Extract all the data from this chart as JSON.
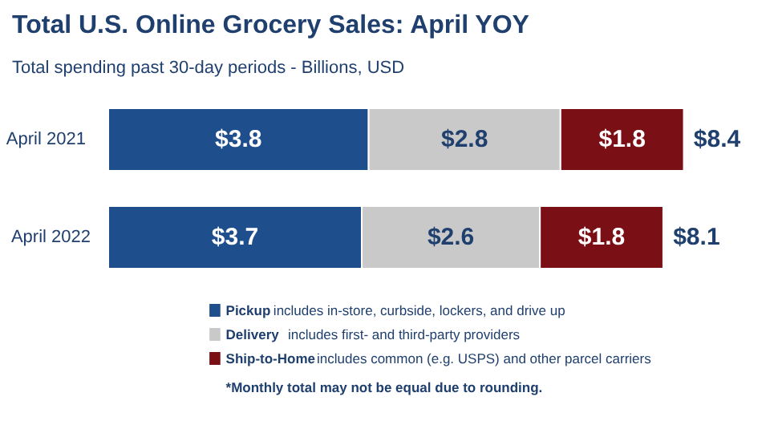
{
  "chart_data": {
    "type": "bar",
    "orientation": "horizontal",
    "stacked": true,
    "title": "Total U.S. Online Grocery Sales: April YOY",
    "subtitle": "Total spending past 30-day periods - Billions, USD",
    "categories": [
      "April  2021",
      "April 2022"
    ],
    "series": [
      {
        "name": "Pickup",
        "color": "#1f4e8c",
        "values": [
          3.8,
          3.7
        ],
        "value_labels": [
          "$3.8",
          "$3.7"
        ]
      },
      {
        "name": "Delivery",
        "color": "#c9c9c9",
        "values": [
          2.8,
          2.6
        ],
        "value_labels": [
          "$2.8",
          "$2.6"
        ]
      },
      {
        "name": "Ship-to-Home",
        "color": "#7a1016",
        "values": [
          1.8,
          1.8
        ],
        "value_labels": [
          "$1.8",
          "$1.8"
        ]
      }
    ],
    "totals": [
      "$8.4",
      "$8.1"
    ],
    "legend": "bottom",
    "annotations": [
      "includes in-store, curbside, lockers, and drive up",
      "includes first- and third-party providers",
      "includes common (e.g. USPS) and other parcel carriers",
      "*Monthly total may not be equal due to rounding."
    ]
  }
}
